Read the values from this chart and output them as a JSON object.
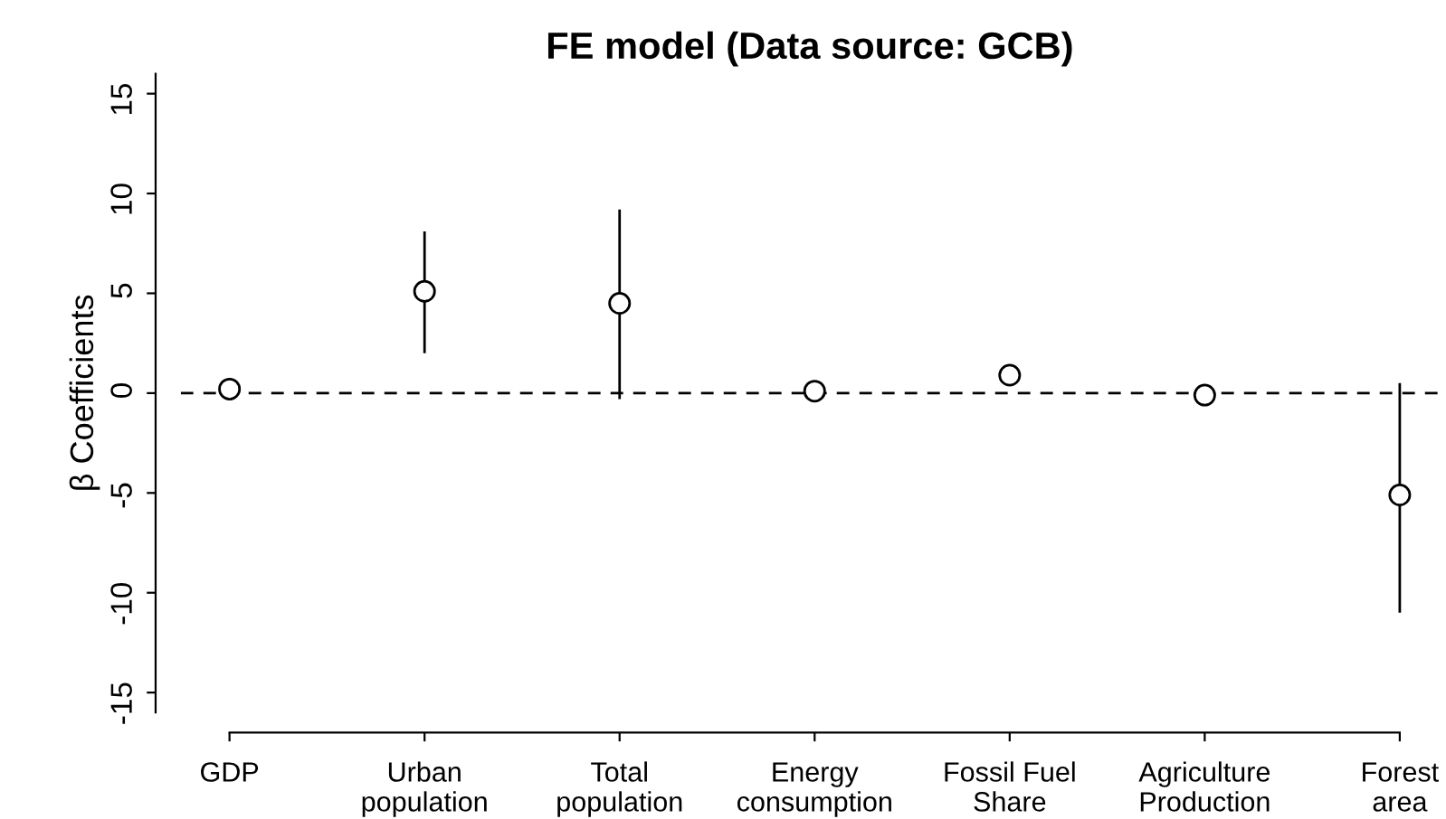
{
  "chart_data": {
    "type": "scatter",
    "title": "FE model (Data source: GCB)",
    "ylabel": "β Coefficients",
    "categories": [
      "GDP",
      "Urban\npopulation",
      "Total\npopulation",
      "Energy\nconsumption",
      "Fossil Fuel\nShare",
      "Agriculture\nProduction",
      "Forest\narea"
    ],
    "values": [
      0.2,
      5.1,
      4.5,
      0.1,
      0.9,
      -0.1,
      -5.1
    ],
    "errors": [
      null,
      [
        2.0,
        8.1
      ],
      [
        -0.3,
        9.2
      ],
      null,
      null,
      null,
      [
        -11.0,
        0.5
      ]
    ],
    "color": "#000000",
    "marker": "circle",
    "ylim": [
      -16,
      16
    ],
    "yticks": [
      -15,
      -10,
      -5,
      0,
      5,
      10,
      15
    ],
    "grid": false,
    "ref_lines": [
      {
        "axis": "y",
        "value": 0,
        "line_style": "dashed",
        "color": "#000000"
      }
    ]
  }
}
